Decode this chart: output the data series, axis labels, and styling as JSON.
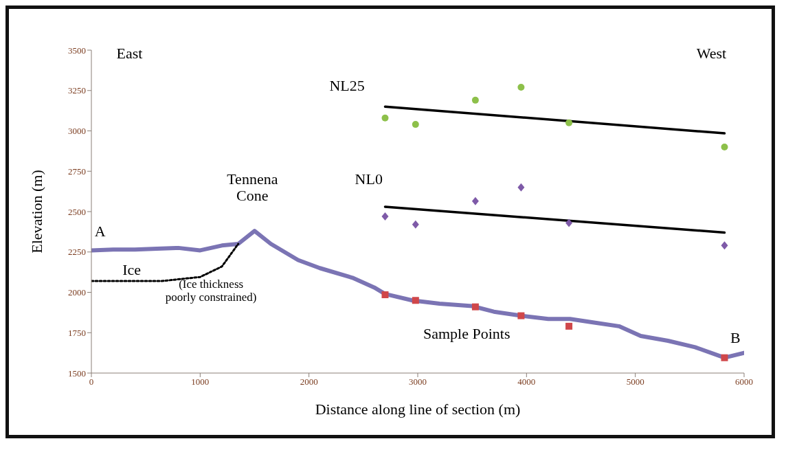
{
  "chart_data": {
    "type": "line",
    "xlabel": "Distance along line of section (m)",
    "ylabel": "Elevation (m)",
    "xlim": [
      0,
      6000
    ],
    "xticks": [
      0,
      1000,
      2000,
      3000,
      4000,
      5000,
      6000
    ],
    "ylim": [
      1500,
      3500
    ],
    "yticks": [
      1500,
      1750,
      2000,
      2250,
      2500,
      2750,
      3000,
      3250,
      3500
    ],
    "grid": false,
    "legend": false,
    "series": [
      {
        "color": "#7b74b4",
        "line_style": "solid",
        "marker": "none",
        "x": [
          0,
          200,
          400,
          600,
          800,
          1000,
          1200,
          1350,
          1500,
          1650,
          1900,
          2100,
          2400,
          2600,
          2700,
          2950,
          3200,
          3500,
          3700,
          3950,
          4200,
          4400,
          4600,
          4850,
          5050,
          5300,
          5550,
          5820,
          6000
        ],
        "values": [
          2260,
          2265,
          2265,
          2270,
          2275,
          2260,
          2290,
          2300,
          2380,
          2300,
          2200,
          2150,
          2090,
          2030,
          1990,
          1950,
          1930,
          1915,
          1880,
          1855,
          1835,
          1835,
          1815,
          1790,
          1730,
          1700,
          1660,
          1595,
          1625
        ]
      },
      {
        "color": "#000000",
        "line_style": "dotted",
        "marker": "none",
        "x": [
          0,
          650,
          1000,
          1200,
          1350
        ],
        "values": [
          2070,
          2070,
          2095,
          2160,
          2300
        ]
      },
      {
        "color": "#000000",
        "line_style": "solid",
        "marker": "none",
        "x": [
          2700,
          5820
        ],
        "values": [
          3150,
          2985
        ]
      },
      {
        "color": "#000000",
        "line_style": "solid",
        "marker": "none",
        "x": [
          2700,
          5820
        ],
        "values": [
          2530,
          2370
        ]
      },
      {
        "type": "scatter",
        "color": "#d0474a",
        "marker": "square",
        "x": [
          2700,
          2980,
          3530,
          3950,
          4390,
          5820
        ],
        "values": [
          1985,
          1950,
          1910,
          1855,
          1790,
          1595
        ]
      },
      {
        "type": "scatter",
        "color": "#8dc04a",
        "marker": "circle",
        "x": [
          2700,
          2980,
          3530,
          3950,
          4390,
          5820
        ],
        "values": [
          3080,
          3040,
          3190,
          3270,
          3050,
          2900
        ]
      },
      {
        "type": "scatter",
        "color": "#7e5aa8",
        "marker": "diamond",
        "x": [
          2700,
          2980,
          3530,
          3950,
          4390,
          5820
        ],
        "values": [
          2470,
          2420,
          2565,
          2650,
          2430,
          2290
        ]
      }
    ],
    "annotations": [
      "East",
      "West",
      "A",
      "B",
      "Tennena\nCone",
      "NL25",
      "NL0",
      "Ice",
      "(Ice thickness\npoorly constrained)",
      "Sample Points"
    ]
  }
}
